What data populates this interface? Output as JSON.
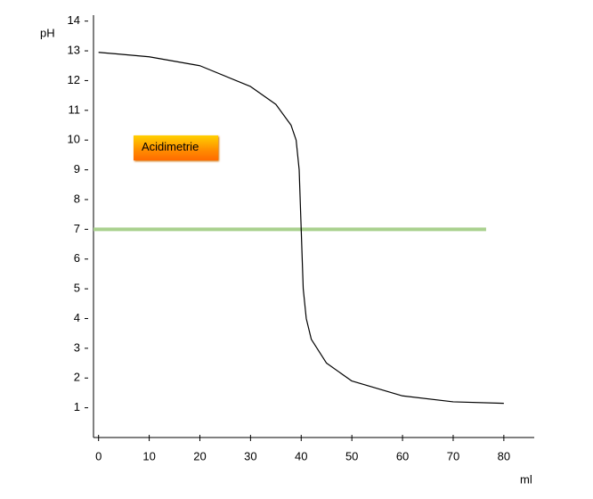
{
  "chart_data": {
    "type": "line",
    "y_label": "pH",
    "x_label": "ml",
    "button_label": "Acidimetrie",
    "x": [
      0,
      10,
      20,
      30,
      35,
      38,
      39,
      39.6,
      40,
      40.4,
      41,
      42,
      45,
      50,
      60,
      70,
      80
    ],
    "series": [
      {
        "color": "#000000",
        "values": [
          12.95,
          12.8,
          12.5,
          11.8,
          11.2,
          10.5,
          10.0,
          9.0,
          7.0,
          5.0,
          4.0,
          3.3,
          2.5,
          1.9,
          1.4,
          1.2,
          1.15
        ]
      }
    ],
    "reference_line": {
      "y": 7,
      "x": [
        -1,
        76.5
      ],
      "color": "#a9d18e"
    },
    "xlim": [
      -1,
      86
    ],
    "ylim": [
      0,
      14.2
    ],
    "xticks": [
      0,
      10,
      20,
      30,
      40,
      50,
      60,
      70,
      80
    ],
    "yticks": [
      1,
      2,
      3,
      4,
      5,
      6,
      7,
      8,
      9,
      10,
      11,
      12,
      13,
      14
    ],
    "grid": false
  }
}
